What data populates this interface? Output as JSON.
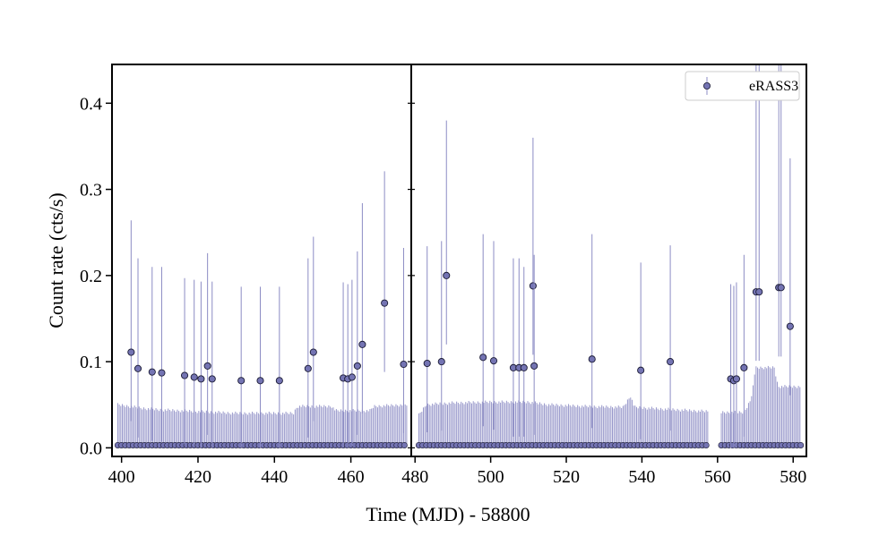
{
  "chart_data": {
    "type": "scatter",
    "xlabel": "Time (MJD) - 58800",
    "ylabel": "Count rate (cts/s)",
    "ylim": [
      -0.01,
      0.445
    ],
    "y_ticks": [
      0.0,
      0.1,
      0.2,
      0.3,
      0.4
    ],
    "colors": {
      "marker_fill": "#7474b3",
      "marker_edge": "#1a1a33",
      "errorbar": "#8c8cc4",
      "axes": "#000000"
    },
    "legend": {
      "label": "eRASS3",
      "placement": "top-right"
    },
    "series": [
      {
        "label": "eRASS3",
        "panels": [
          {
            "xlim": [
              397.5,
              475.8
            ],
            "x_ticks": [
              400,
              420,
              440,
              460
            ],
            "upper_band": [
              [
                399.0,
                0.052
              ],
              [
                405.0,
                0.048
              ],
              [
                410.0,
                0.046
              ],
              [
                420.0,
                0.044
              ],
              [
                425.0,
                0.043
              ],
              [
                430.0,
                0.042
              ],
              [
                440.0,
                0.042
              ],
              [
                445.0,
                0.042
              ],
              [
                446.0,
                0.05
              ],
              [
                455.0,
                0.05
              ],
              [
                456.0,
                0.045
              ],
              [
                465.0,
                0.045
              ],
              [
                466.0,
                0.05
              ],
              [
                474.8,
                0.052
              ]
            ],
            "points": [
              [
                402.5,
                0.111,
                0.264
              ],
              [
                404.3,
                0.092,
                0.22
              ],
              [
                408.0,
                0.088,
                0.21
              ],
              [
                410.5,
                0.087,
                0.21
              ],
              [
                416.5,
                0.084,
                0.197
              ],
              [
                419.0,
                0.082,
                0.195
              ],
              [
                420.8,
                0.08,
                0.193
              ],
              [
                422.5,
                0.095,
                0.226
              ],
              [
                423.7,
                0.08,
                0.193
              ],
              [
                431.3,
                0.078,
                0.187
              ],
              [
                436.3,
                0.078,
                0.187
              ],
              [
                441.3,
                0.078,
                0.187
              ],
              [
                448.8,
                0.092,
                0.22
              ],
              [
                450.2,
                0.111,
                0.245
              ],
              [
                458.0,
                0.081,
                0.192
              ],
              [
                459.2,
                0.08,
                0.19
              ],
              [
                460.3,
                0.082,
                0.195
              ],
              [
                461.7,
                0.095,
                0.228
              ],
              [
                463.0,
                0.12,
                0.284
              ],
              [
                468.8,
                0.168,
                0.321
              ],
              [
                473.8,
                0.097,
                0.232
              ]
            ]
          },
          {
            "xlim": [
              479.0,
              583.5
            ],
            "x_ticks": [
              480,
              500,
              520,
              540,
              560,
              580
            ],
            "upper_band": [
              [
                481.0,
                0.04
              ],
              [
                483.0,
                0.052
              ],
              [
                490.0,
                0.054
              ],
              [
                500.0,
                0.055
              ],
              [
                510.0,
                0.055
              ],
              [
                515.0,
                0.052
              ],
              [
                525.0,
                0.05
              ],
              [
                535.0,
                0.049
              ],
              [
                537.0,
                0.062
              ],
              [
                538.0,
                0.049
              ],
              [
                545.0,
                0.047
              ],
              [
                557.5,
                0.044
              ],
              [
                561.0,
                0.043
              ],
              [
                567.0,
                0.043
              ],
              [
                569.0,
                0.06
              ],
              [
                570.0,
                0.095
              ],
              [
                575.0,
                0.095
              ],
              [
                576.0,
                0.073
              ],
              [
                582.0,
                0.073
              ]
            ],
            "points": [
              [
                483.2,
                0.098,
                0.234
              ],
              [
                487.0,
                0.1,
                0.24
              ],
              [
                488.3,
                0.2,
                0.38
              ],
              [
                498.0,
                0.105,
                0.248
              ],
              [
                500.8,
                0.101,
                0.24
              ],
              [
                506.0,
                0.093,
                0.22
              ],
              [
                507.5,
                0.093,
                0.22
              ],
              [
                508.8,
                0.093,
                0.21
              ],
              [
                511.2,
                0.188,
                0.36
              ],
              [
                511.5,
                0.095,
                0.224
              ],
              [
                526.8,
                0.103,
                0.248
              ],
              [
                539.7,
                0.09,
                0.215
              ],
              [
                547.5,
                0.1,
                0.235
              ],
              [
                563.5,
                0.08,
                0.19
              ],
              [
                564.3,
                0.078,
                0.188
              ],
              [
                565.0,
                0.08,
                0.192
              ],
              [
                567.0,
                0.093,
                0.224
              ],
              [
                570.2,
                0.181,
                0.445
              ],
              [
                571.0,
                0.181,
                0.445
              ],
              [
                576.2,
                0.186,
                0.445
              ],
              [
                576.8,
                0.186,
                0.445
              ],
              [
                579.2,
                0.141,
                0.336
              ]
            ],
            "gaps": [
              [
                557.6,
                560.6
              ]
            ]
          }
        ]
      }
    ]
  }
}
